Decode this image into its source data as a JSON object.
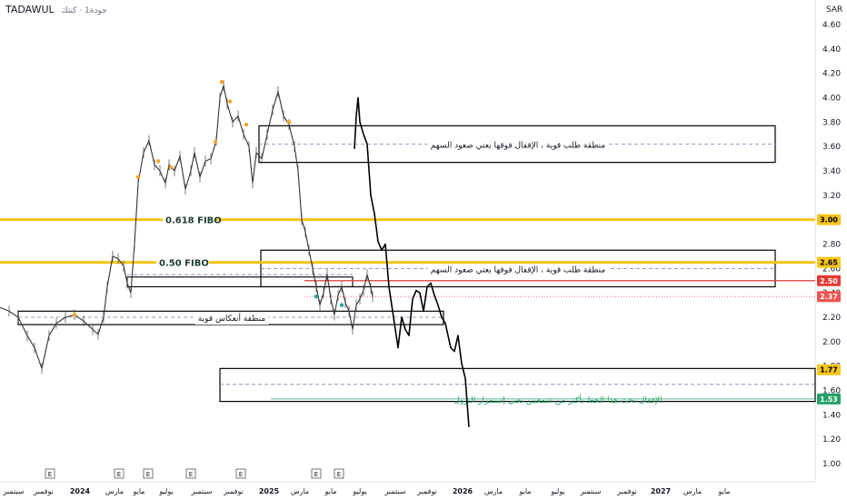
{
  "header": {
    "symbol": "TADAWUL",
    "meta": "جودة1 · كنتك"
  },
  "currency": "SAR",
  "chart_data": {
    "type": "line",
    "y_axis": {
      "ticks": [
        4.6,
        4.4,
        4.2,
        4.0,
        3.8,
        3.6,
        3.4,
        3.2,
        3.0,
        2.8,
        2.6,
        2.4,
        2.2,
        2.0,
        1.8,
        1.6,
        1.4,
        1.2,
        1.0
      ],
      "range": [
        0.9,
        4.7
      ]
    },
    "x_axis": {
      "labels": [
        "سبتمبر",
        "نوفمبر",
        "2024",
        "مارس",
        "مايو",
        "يوليو",
        "سبتمبر",
        "نوفمبر",
        "2025",
        "مارس",
        "مايو",
        "يوليو",
        "سبتمبر",
        "نوفمبر",
        "2026",
        "مارس",
        "مايو",
        "يوليو",
        "سبتمبر",
        "نوفمبر",
        "2027",
        "مارس",
        "مايو"
      ]
    },
    "earnings_markers": [
      "E",
      "E",
      "E",
      "E",
      "E",
      "E",
      "E"
    ],
    "price_badges": [
      {
        "value": "3.00",
        "color": "#f5c518"
      },
      {
        "value": "2.65",
        "color": "#f5c518"
      },
      {
        "value": "2.50",
        "color": "#e53935"
      },
      {
        "value": "2.37",
        "color": "#ef5350"
      },
      {
        "value": "1.77",
        "color": "#f5c518"
      },
      {
        "value": "1.53",
        "color": "#26a269"
      }
    ],
    "fib_lines": [
      {
        "label": "0.618 FIBO",
        "value": 3.0
      },
      {
        "label": "0.50 FIBO",
        "value": 2.65
      }
    ],
    "zones": [
      {
        "label": "منطقة طلب قوية ، الإقفال فوقها يعني صعود السهم",
        "top": 3.77,
        "bottom": 3.47,
        "mid": 3.62
      },
      {
        "label": "منطقة طلب قوية ، الإقفال فوقها يعني صعود السهم",
        "top": 2.75,
        "bottom": 2.45,
        "mid": 2.6
      },
      {
        "label": "منطقة أنعكاس قوية",
        "top": 2.25,
        "bottom": 2.14,
        "mid": 2.2
      },
      {
        "label": "",
        "top": 1.78,
        "bottom": 1.51,
        "mid": 1.65
      }
    ],
    "lines": [
      {
        "label": "",
        "value": 2.5,
        "color": "#e53935"
      },
      {
        "label": "",
        "value": 2.37,
        "color": "#ef5350"
      },
      {
        "label": "الإقفال تحت هذا الخط بأكثر من شمعتين يعني إستمرار النزول",
        "value": 1.53,
        "color": "#26a269"
      }
    ],
    "price_series": [
      [
        0,
        2.28
      ],
      [
        10,
        2.25
      ],
      [
        20,
        2.2
      ],
      [
        30,
        2.05
      ],
      [
        38,
        1.95
      ],
      [
        46,
        1.78
      ],
      [
        54,
        2.05
      ],
      [
        62,
        2.15
      ],
      [
        72,
        2.2
      ],
      [
        82,
        2.22
      ],
      [
        92,
        2.17
      ],
      [
        102,
        2.1
      ],
      [
        108,
        2.06
      ],
      [
        114,
        2.2
      ],
      [
        118,
        2.45
      ],
      [
        124,
        2.7
      ],
      [
        130,
        2.68
      ],
      [
        136,
        2.62
      ],
      [
        140,
        2.48
      ],
      [
        144,
        2.4
      ],
      [
        148,
        2.8
      ],
      [
        152,
        3.3
      ],
      [
        158,
        3.55
      ],
      [
        164,
        3.65
      ],
      [
        170,
        3.45
      ],
      [
        176,
        3.4
      ],
      [
        182,
        3.3
      ],
      [
        186,
        3.45
      ],
      [
        192,
        3.4
      ],
      [
        198,
        3.52
      ],
      [
        204,
        3.25
      ],
      [
        210,
        3.4
      ],
      [
        214,
        3.55
      ],
      [
        220,
        3.35
      ],
      [
        226,
        3.48
      ],
      [
        232,
        3.5
      ],
      [
        238,
        3.65
      ],
      [
        242,
        4.0
      ],
      [
        246,
        4.1
      ],
      [
        250,
        3.95
      ],
      [
        256,
        3.8
      ],
      [
        262,
        3.85
      ],
      [
        268,
        3.7
      ],
      [
        274,
        3.6
      ],
      [
        278,
        3.3
      ],
      [
        282,
        3.55
      ],
      [
        288,
        3.5
      ],
      [
        294,
        3.7
      ],
      [
        300,
        3.9
      ],
      [
        306,
        4.05
      ],
      [
        312,
        3.85
      ],
      [
        318,
        3.78
      ],
      [
        324,
        3.6
      ],
      [
        328,
        3.4
      ],
      [
        332,
        3.0
      ],
      [
        336,
        2.9
      ],
      [
        340,
        2.75
      ],
      [
        344,
        2.6
      ],
      [
        348,
        2.45
      ],
      [
        352,
        2.3
      ],
      [
        356,
        2.4
      ],
      [
        360,
        2.55
      ],
      [
        364,
        2.35
      ],
      [
        368,
        2.22
      ],
      [
        372,
        2.38
      ],
      [
        376,
        2.45
      ],
      [
        380,
        2.32
      ],
      [
        384,
        2.25
      ],
      [
        388,
        2.1
      ],
      [
        392,
        2.3
      ],
      [
        396,
        2.35
      ],
      [
        400,
        2.42
      ],
      [
        404,
        2.55
      ],
      [
        408,
        2.44
      ],
      [
        410,
        2.37
      ]
    ],
    "projection_series": [
      [
        390,
        3.58
      ],
      [
        392,
        3.85
      ],
      [
        394,
        4.0
      ],
      [
        396,
        3.8
      ],
      [
        400,
        3.7
      ],
      [
        404,
        3.62
      ],
      [
        408,
        3.2
      ],
      [
        412,
        3.05
      ],
      [
        416,
        2.82
      ],
      [
        420,
        2.75
      ],
      [
        424,
        2.8
      ],
      [
        428,
        2.45
      ],
      [
        432,
        2.25
      ],
      [
        436,
        2.05
      ],
      [
        438,
        1.95
      ],
      [
        442,
        2.2
      ],
      [
        446,
        2.1
      ],
      [
        450,
        2.05
      ],
      [
        454,
        2.35
      ],
      [
        458,
        2.42
      ],
      [
        462,
        2.4
      ],
      [
        466,
        2.25
      ],
      [
        470,
        2.45
      ],
      [
        474,
        2.48
      ],
      [
        478,
        2.38
      ],
      [
        482,
        2.3
      ],
      [
        486,
        2.2
      ],
      [
        490,
        2.15
      ],
      [
        496,
        1.95
      ],
      [
        500,
        1.92
      ],
      [
        504,
        2.05
      ],
      [
        508,
        1.82
      ],
      [
        512,
        1.7
      ],
      [
        514,
        1.5
      ],
      [
        516,
        1.3
      ]
    ],
    "grid": false
  }
}
